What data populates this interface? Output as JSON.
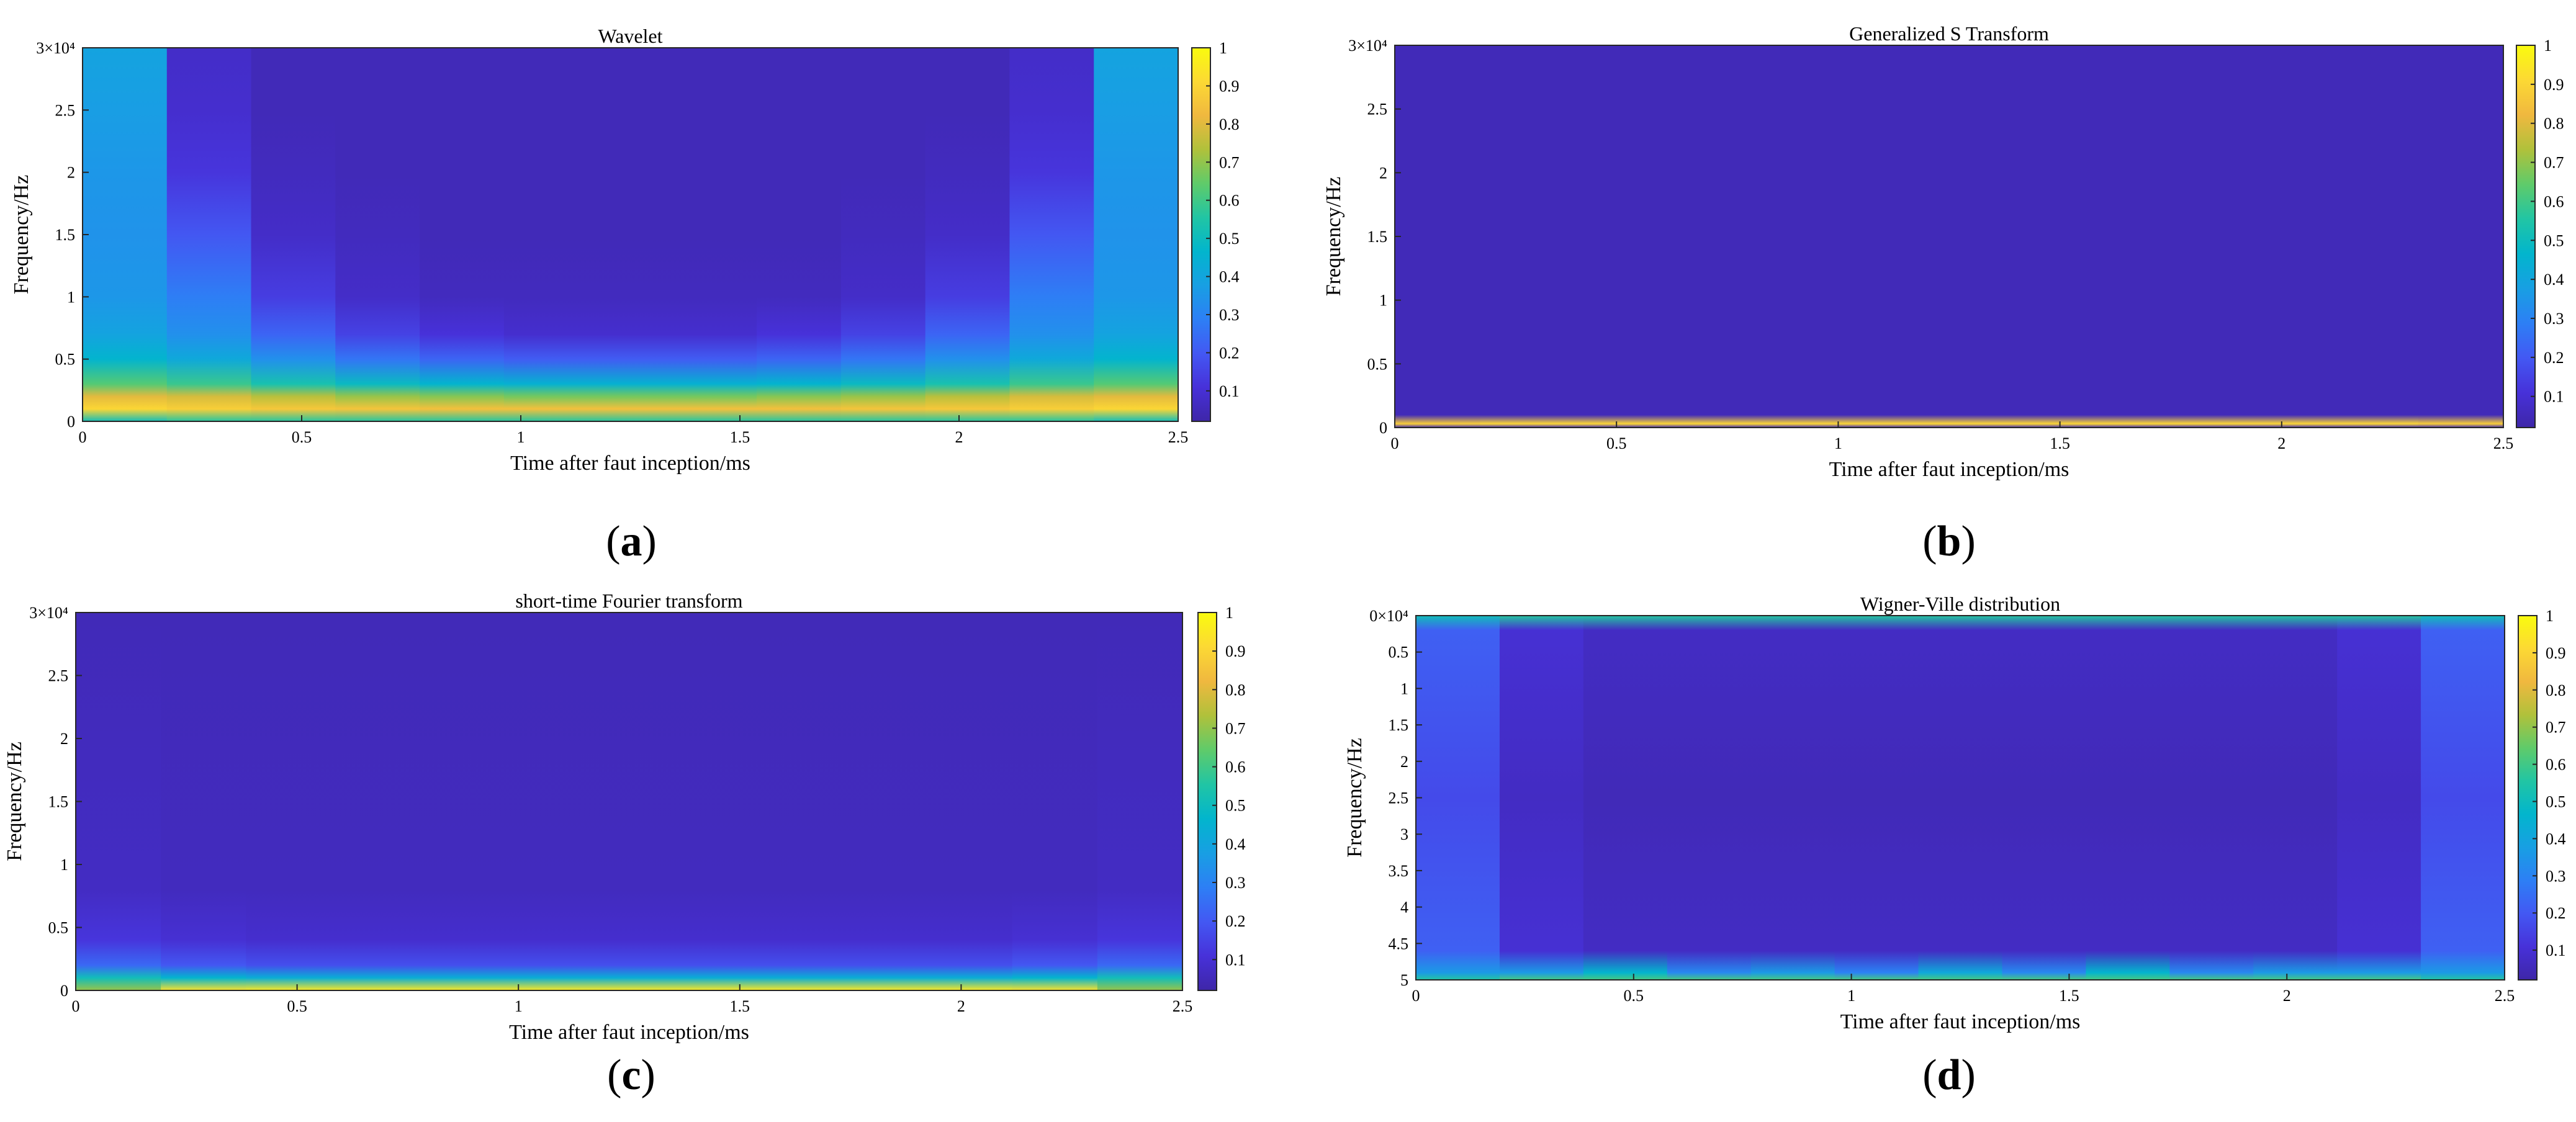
{
  "figure": {
    "caption_labels": [
      "(a)",
      "(b)",
      "(c)",
      "(d)"
    ]
  },
  "colormap": [
    "#3e26a8",
    "#4731d9",
    "#4358f3",
    "#2d7ff5",
    "#189fe3",
    "#02b5cd",
    "#21c5a4",
    "#5fcb6a",
    "#b0c13b",
    "#f0b83f",
    "#fcd934",
    "#f9fb0e"
  ],
  "chart_data": [
    {
      "type": "heatmap",
      "title": "Wavelet",
      "xlabel": "Time after faut inception/ms",
      "ylabel": "Frequency/Hz",
      "xlim": [
        0,
        2.5
      ],
      "ylim": [
        0,
        30000
      ],
      "y_direction": "normal",
      "y_exponent_label": "3×10⁴",
      "xticks": [
        0,
        0.5,
        1,
        1.5,
        2,
        2.5
      ],
      "xtick_labels": [
        "0",
        "0.5",
        "1",
        "1.5",
        "2",
        "2.5"
      ],
      "yticks": [
        0,
        5000,
        10000,
        15000,
        20000,
        25000,
        30000
      ],
      "ytick_labels": [
        "0",
        "0.5",
        "1",
        "1.5",
        "2",
        "2.5",
        "3×10⁴"
      ],
      "colorbar": {
        "ticks": [
          0.1,
          0.2,
          0.3,
          0.4,
          0.5,
          0.6,
          0.7,
          0.8,
          0.9,
          1
        ],
        "tick_labels": [
          "0.1",
          "0.2",
          "0.3",
          "0.4",
          "0.5",
          "0.6",
          "0.7",
          "0.8",
          "0.9",
          "1"
        ],
        "range": [
          0.02,
          1
        ]
      },
      "pattern": "energy concentrated below ~2 kHz (yellow band), spreading to higher frequencies near t=0 and t=2.5 ms (edge effect)",
      "rows": [
        {
          "freq": 30000,
          "values": [
            0.38,
            0.06,
            0.03,
            0.03,
            0.03,
            0.03,
            0.03,
            0.03,
            0.03,
            0.03,
            0.03,
            0.06,
            0.38
          ]
        },
        {
          "freq": 25000,
          "values": [
            0.36,
            0.07,
            0.03,
            0.03,
            0.03,
            0.03,
            0.03,
            0.03,
            0.03,
            0.03,
            0.03,
            0.07,
            0.36
          ]
        },
        {
          "freq": 20000,
          "values": [
            0.34,
            0.1,
            0.04,
            0.03,
            0.03,
            0.03,
            0.03,
            0.03,
            0.03,
            0.03,
            0.04,
            0.1,
            0.34
          ]
        },
        {
          "freq": 15000,
          "values": [
            0.33,
            0.18,
            0.06,
            0.04,
            0.03,
            0.03,
            0.03,
            0.03,
            0.03,
            0.04,
            0.06,
            0.18,
            0.33
          ]
        },
        {
          "freq": 10000,
          "values": [
            0.34,
            0.27,
            0.12,
            0.06,
            0.04,
            0.04,
            0.04,
            0.04,
            0.04,
            0.06,
            0.12,
            0.27,
            0.34
          ]
        },
        {
          "freq": 7000,
          "values": [
            0.38,
            0.32,
            0.21,
            0.13,
            0.09,
            0.07,
            0.07,
            0.07,
            0.09,
            0.13,
            0.21,
            0.32,
            0.38
          ]
        },
        {
          "freq": 5000,
          "values": [
            0.45,
            0.4,
            0.32,
            0.25,
            0.21,
            0.19,
            0.19,
            0.19,
            0.21,
            0.25,
            0.32,
            0.4,
            0.45
          ]
        },
        {
          "freq": 3000,
          "values": [
            0.62,
            0.58,
            0.52,
            0.48,
            0.45,
            0.44,
            0.44,
            0.44,
            0.45,
            0.48,
            0.52,
            0.58,
            0.62
          ]
        },
        {
          "freq": 2000,
          "values": [
            0.8,
            0.78,
            0.74,
            0.7,
            0.68,
            0.66,
            0.66,
            0.66,
            0.68,
            0.7,
            0.74,
            0.78,
            0.8
          ]
        },
        {
          "freq": 1000,
          "values": [
            0.9,
            0.88,
            0.86,
            0.85,
            0.84,
            0.84,
            0.84,
            0.84,
            0.84,
            0.85,
            0.86,
            0.88,
            0.9
          ]
        },
        {
          "freq": 0,
          "values": [
            0.5,
            0.55,
            0.55,
            0.55,
            0.55,
            0.55,
            0.55,
            0.55,
            0.55,
            0.55,
            0.55,
            0.55,
            0.5
          ]
        }
      ]
    },
    {
      "type": "heatmap",
      "title": "Generalized S Transform",
      "xlabel": "Time after faut inception/ms",
      "ylabel": "Frequency/Hz",
      "xlim": [
        0,
        2.5
      ],
      "ylim": [
        0,
        30000
      ],
      "y_direction": "normal",
      "y_exponent_label": "3×10⁴",
      "xticks": [
        0,
        0.5,
        1,
        1.5,
        2,
        2.5
      ],
      "xtick_labels": [
        "0",
        "0.5",
        "1",
        "1.5",
        "2",
        "2.5"
      ],
      "yticks": [
        0,
        5000,
        10000,
        15000,
        20000,
        25000,
        30000
      ],
      "ytick_labels": [
        "0",
        "0.5",
        "1",
        "1.5",
        "2",
        "2.5",
        "3×10⁴"
      ],
      "colorbar": {
        "ticks": [
          0.1,
          0.2,
          0.3,
          0.4,
          0.5,
          0.6,
          0.7,
          0.8,
          0.9,
          1
        ],
        "tick_labels": [
          "0.1",
          "0.2",
          "0.3",
          "0.4",
          "0.5",
          "0.6",
          "0.7",
          "0.8",
          "0.9",
          "1"
        ],
        "range": [
          0.02,
          1
        ]
      },
      "pattern": "uniformly near zero except a thin high-magnitude line at ~0 Hz",
      "rows": [
        {
          "freq": 30000,
          "values": [
            0.03,
            0.03,
            0.03,
            0.03,
            0.03,
            0.03,
            0.03,
            0.03,
            0.03,
            0.03,
            0.03,
            0.03,
            0.03
          ]
        },
        {
          "freq": 1000,
          "values": [
            0.03,
            0.03,
            0.03,
            0.03,
            0.03,
            0.03,
            0.03,
            0.03,
            0.03,
            0.03,
            0.03,
            0.03,
            0.03
          ]
        },
        {
          "freq": 300,
          "values": [
            0.88,
            0.9,
            0.9,
            0.9,
            0.9,
            0.9,
            0.9,
            0.9,
            0.9,
            0.9,
            0.9,
            0.9,
            0.88
          ]
        },
        {
          "freq": 0,
          "values": [
            0.03,
            0.03,
            0.03,
            0.03,
            0.03,
            0.03,
            0.03,
            0.03,
            0.03,
            0.03,
            0.03,
            0.03,
            0.03
          ]
        }
      ]
    },
    {
      "type": "heatmap",
      "title": "short-time Fourier transform",
      "xlabel": "Time after faut inception/ms",
      "ylabel": "Frequency/Hz",
      "xlim": [
        0,
        2.5
      ],
      "ylim": [
        0,
        30000
      ],
      "y_direction": "normal",
      "y_exponent_label": "3×10⁴",
      "xticks": [
        0,
        0.5,
        1,
        1.5,
        2,
        2.5
      ],
      "xtick_labels": [
        "0",
        "0.5",
        "1",
        "1.5",
        "2",
        "2.5"
      ],
      "yticks": [
        0,
        5000,
        10000,
        15000,
        20000,
        25000,
        30000
      ],
      "ytick_labels": [
        "0",
        "0.5",
        "1",
        "1.5",
        "2",
        "2.5",
        "3×10⁴"
      ],
      "colorbar": {
        "ticks": [
          0.1,
          0.2,
          0.3,
          0.4,
          0.5,
          0.6,
          0.7,
          0.8,
          0.9,
          1
        ],
        "tick_labels": [
          "0.1",
          "0.2",
          "0.3",
          "0.4",
          "0.5",
          "0.6",
          "0.7",
          "0.8",
          "0.9",
          "1"
        ],
        "range": [
          0.02,
          1
        ]
      },
      "pattern": "low values everywhere, bright band at lowest frequencies, fading upward",
      "rows": [
        {
          "freq": 30000,
          "values": [
            0.03,
            0.03,
            0.03,
            0.03,
            0.03,
            0.03,
            0.03,
            0.03,
            0.03,
            0.03,
            0.03,
            0.03,
            0.03
          ]
        },
        {
          "freq": 8000,
          "values": [
            0.05,
            0.04,
            0.04,
            0.04,
            0.04,
            0.04,
            0.04,
            0.04,
            0.04,
            0.04,
            0.04,
            0.04,
            0.05
          ]
        },
        {
          "freq": 4000,
          "values": [
            0.1,
            0.08,
            0.07,
            0.07,
            0.07,
            0.07,
            0.07,
            0.07,
            0.07,
            0.07,
            0.07,
            0.08,
            0.1
          ]
        },
        {
          "freq": 2000,
          "values": [
            0.22,
            0.18,
            0.16,
            0.16,
            0.16,
            0.16,
            0.16,
            0.16,
            0.16,
            0.16,
            0.16,
            0.18,
            0.22
          ]
        },
        {
          "freq": 1000,
          "values": [
            0.5,
            0.45,
            0.42,
            0.42,
            0.42,
            0.42,
            0.42,
            0.42,
            0.42,
            0.42,
            0.42,
            0.45,
            0.5
          ]
        },
        {
          "freq": 0,
          "values": [
            0.7,
            0.93,
            0.95,
            0.95,
            0.95,
            0.95,
            0.95,
            0.95,
            0.95,
            0.95,
            0.95,
            0.93,
            0.7
          ]
        }
      ]
    },
    {
      "type": "heatmap",
      "title": "Wigner-Ville distribution",
      "xlabel": "Time after faut inception/ms",
      "ylabel": "Frequency/Hz",
      "xlim": [
        0,
        2.5
      ],
      "ylim": [
        0,
        50000
      ],
      "y_direction": "reversed",
      "y_exponent_label": "0×10⁴",
      "xticks": [
        0,
        0.5,
        1,
        1.5,
        2,
        2.5
      ],
      "xtick_labels": [
        "0",
        "0.5",
        "1",
        "1.5",
        "2",
        "2.5"
      ],
      "yticks": [
        0,
        5000,
        10000,
        15000,
        20000,
        25000,
        30000,
        35000,
        40000,
        45000,
        50000
      ],
      "ytick_labels": [
        "0×10⁴",
        "0.5",
        "1",
        "1.5",
        "2",
        "2.5",
        "3",
        "3.5",
        "4",
        "4.5",
        "5"
      ],
      "colorbar": {
        "ticks": [
          0.1,
          0.2,
          0.3,
          0.4,
          0.5,
          0.6,
          0.7,
          0.8,
          0.9,
          1
        ],
        "tick_labels": [
          "0.1",
          "0.2",
          "0.3",
          "0.4",
          "0.5",
          "0.6",
          "0.7",
          "0.8",
          "0.9",
          "1"
        ],
        "range": [
          0.02,
          1
        ]
      },
      "pattern": "near zero interior, interference fringes at the left/right edges, bright strip along the top edge and along 50 kHz (bottom)",
      "rows": [
        {
          "freq": 0,
          "values": [
            0.5,
            0.55,
            0.55,
            0.55,
            0.55,
            0.55,
            0.55,
            0.55,
            0.55,
            0.55,
            0.55,
            0.55,
            0.5
          ]
        },
        {
          "freq": 2000,
          "values": [
            0.2,
            0.08,
            0.05,
            0.05,
            0.05,
            0.05,
            0.05,
            0.05,
            0.05,
            0.05,
            0.05,
            0.08,
            0.2
          ]
        },
        {
          "freq": 25000,
          "values": [
            0.15,
            0.05,
            0.03,
            0.03,
            0.03,
            0.03,
            0.03,
            0.03,
            0.03,
            0.03,
            0.03,
            0.05,
            0.15
          ]
        },
        {
          "freq": 46000,
          "values": [
            0.2,
            0.08,
            0.05,
            0.05,
            0.05,
            0.05,
            0.05,
            0.05,
            0.05,
            0.05,
            0.05,
            0.08,
            0.2
          ]
        },
        {
          "freq": 49000,
          "values": [
            0.35,
            0.35,
            0.45,
            0.3,
            0.35,
            0.28,
            0.4,
            0.3,
            0.45,
            0.3,
            0.35,
            0.35,
            0.35
          ]
        },
        {
          "freq": 50000,
          "values": [
            0.55,
            0.6,
            0.6,
            0.6,
            0.6,
            0.6,
            0.6,
            0.6,
            0.6,
            0.6,
            0.6,
            0.6,
            0.55
          ]
        }
      ]
    }
  ]
}
